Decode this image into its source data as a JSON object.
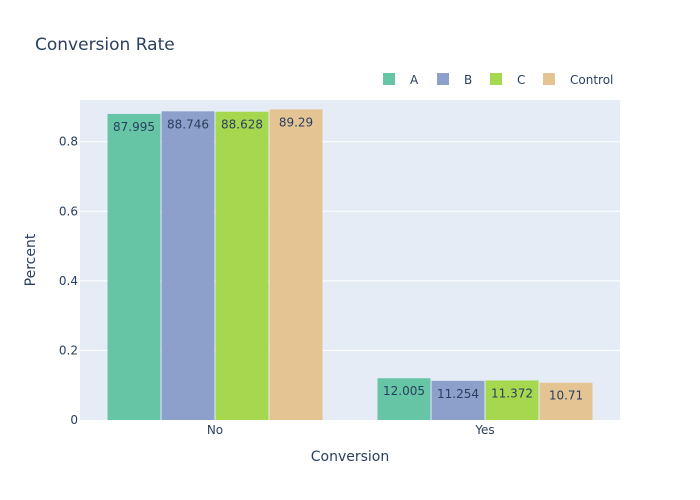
{
  "chart_data": {
    "type": "bar",
    "title": "Conversion Rate",
    "xlabel": "Conversion",
    "ylabel": "Percent",
    "categories": [
      "No",
      "Yes"
    ],
    "ylim": [
      0,
      0.92
    ],
    "yticks": [
      0,
      0.2,
      0.4,
      0.6,
      0.8
    ],
    "ytick_labels": [
      "0",
      "0.2",
      "0.4",
      "0.6",
      "0.8"
    ],
    "legend_position": "top-right",
    "grid": true,
    "series": [
      {
        "name": "A",
        "color": "#66c5a5",
        "values": [
          0.87995,
          0.12005
        ],
        "labels": [
          "87.995",
          "12.005"
        ]
      },
      {
        "name": "B",
        "color": "#8da0cb",
        "values": [
          0.88746,
          0.11254
        ],
        "labels": [
          "88.746",
          "11.254"
        ]
      },
      {
        "name": "C",
        "color": "#a6d84f",
        "values": [
          0.88628,
          0.11372
        ],
        "labels": [
          "88.628",
          "11.372"
        ]
      },
      {
        "name": "Control",
        "color": "#e5c494",
        "values": [
          0.8929,
          0.1071
        ],
        "labels": [
          "89.29",
          "10.71"
        ]
      }
    ]
  },
  "colors": {
    "plot_background": "#e5ecf6",
    "text": "#2a3f5f"
  }
}
